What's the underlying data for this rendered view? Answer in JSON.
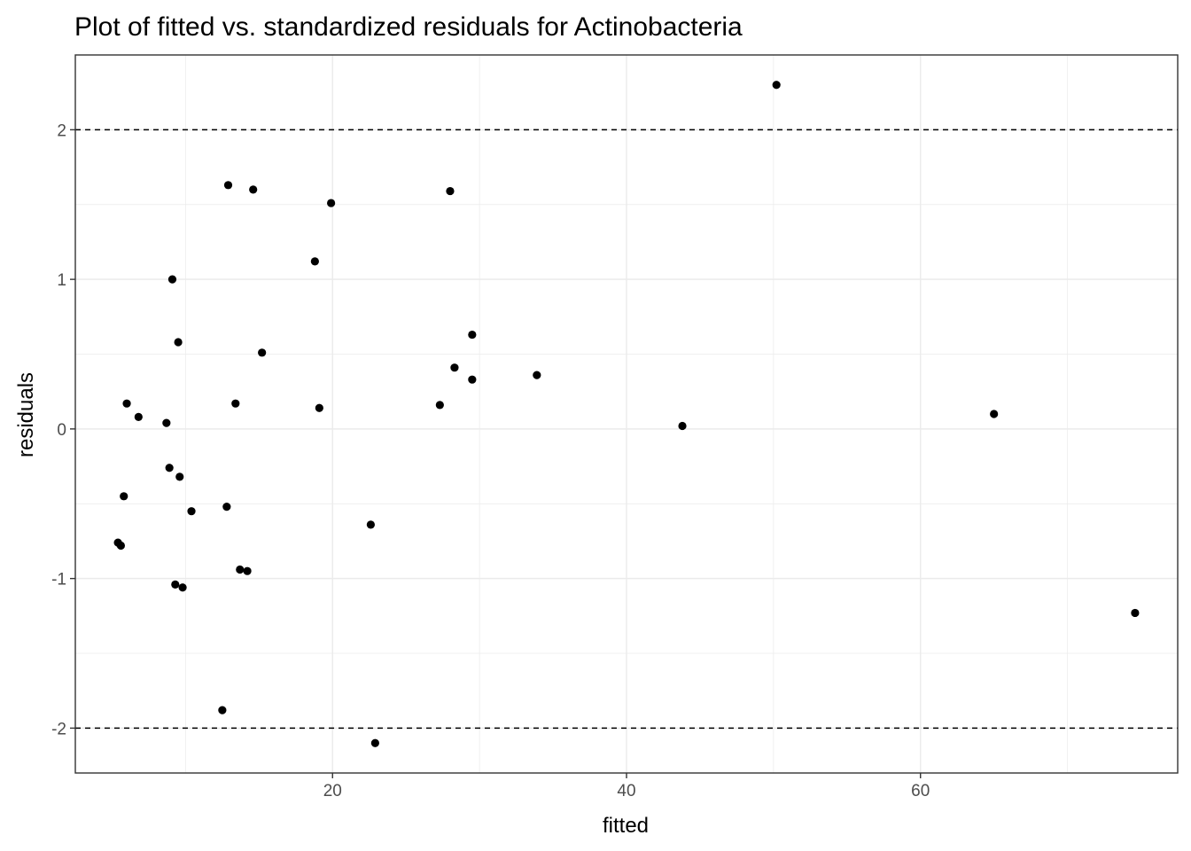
{
  "chart_data": {
    "type": "scatter",
    "title": "Plot of fitted vs. standardized residuals for Actinobacteria",
    "xlabel": "fitted",
    "ylabel": "residuals",
    "xlim": [
      2.5,
      77.5
    ],
    "ylim": [
      -2.3,
      2.5
    ],
    "x_ticks": [
      20,
      40,
      60
    ],
    "x_tick_labels": [
      "20",
      "40",
      "60"
    ],
    "y_ticks": [
      -2,
      -1,
      0,
      1,
      2
    ],
    "y_tick_labels": [
      "-2",
      "-1",
      "0",
      "1",
      "2"
    ],
    "grid": true,
    "reference_lines": [
      2,
      -2
    ],
    "point_color": "#000000",
    "series": [
      {
        "points": [
          [
            50.2,
            2.3
          ],
          [
            12.9,
            1.63
          ],
          [
            14.6,
            1.6
          ],
          [
            28.0,
            1.59
          ],
          [
            19.9,
            1.51
          ],
          [
            18.8,
            1.12
          ],
          [
            9.1,
            1.0
          ],
          [
            29.5,
            0.63
          ],
          [
            9.5,
            0.58
          ],
          [
            15.2,
            0.51
          ],
          [
            28.3,
            0.41
          ],
          [
            33.9,
            0.36
          ],
          [
            29.5,
            0.33
          ],
          [
            6.0,
            0.17
          ],
          [
            13.4,
            0.17
          ],
          [
            27.3,
            0.16
          ],
          [
            19.1,
            0.14
          ],
          [
            65.0,
            0.1
          ],
          [
            6.8,
            0.08
          ],
          [
            8.7,
            0.04
          ],
          [
            43.8,
            0.02
          ],
          [
            8.9,
            -0.26
          ],
          [
            9.6,
            -0.32
          ],
          [
            5.8,
            -0.45
          ],
          [
            12.8,
            -0.52
          ],
          [
            10.4,
            -0.55
          ],
          [
            22.6,
            -0.64
          ],
          [
            5.4,
            -0.76
          ],
          [
            5.6,
            -0.78
          ],
          [
            13.7,
            -0.94
          ],
          [
            14.2,
            -0.95
          ],
          [
            9.3,
            -1.04
          ],
          [
            9.8,
            -1.06
          ],
          [
            74.6,
            -1.23
          ],
          [
            12.5,
            -1.88
          ],
          [
            22.9,
            -2.1
          ]
        ]
      }
    ]
  }
}
